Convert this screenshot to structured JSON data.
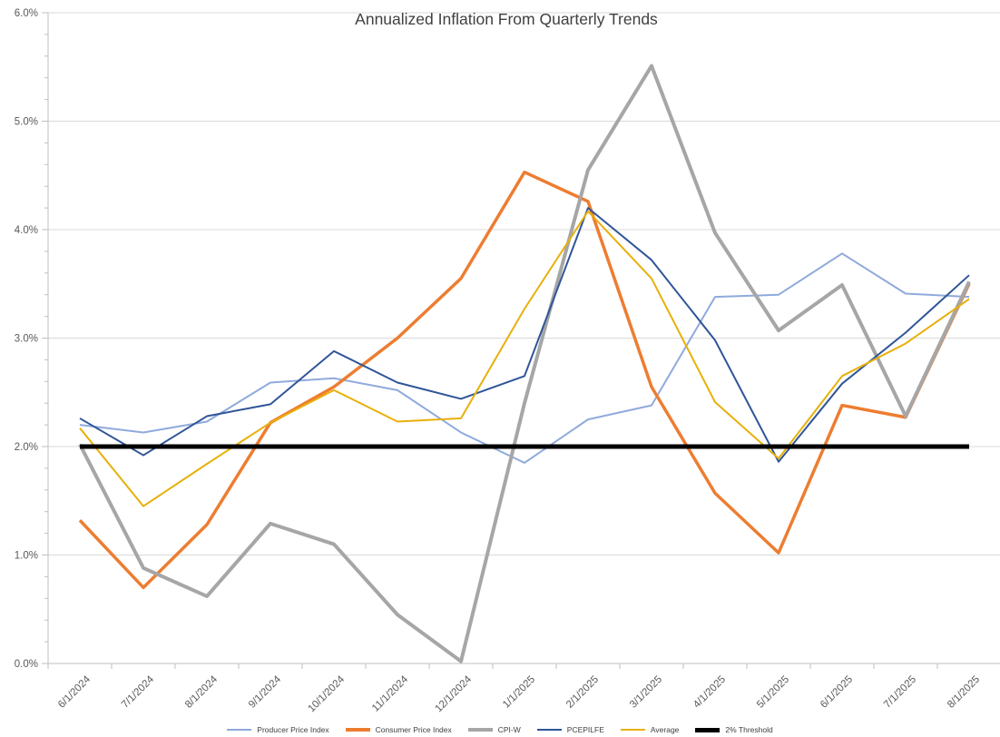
{
  "chart_data": {
    "type": "line",
    "title": "Annualized Inflation From Quarterly Trends",
    "x": [
      "6/1/2024",
      "7/1/2024",
      "8/1/2024",
      "9/1/2024",
      "10/1/2024",
      "11/1/2024",
      "12/1/2024",
      "1/1/2025",
      "2/1/2025",
      "3/1/2025",
      "4/1/2025",
      "5/1/2025",
      "6/1/2025",
      "7/1/2025",
      "8/1/2025"
    ],
    "series": [
      {
        "name": "Producer Price Index",
        "color": "#8FAADC",
        "stroke_width": 2,
        "values": [
          2.2,
          2.13,
          2.23,
          2.59,
          2.63,
          2.52,
          2.13,
          1.85,
          2.25,
          2.38,
          3.38,
          3.4,
          3.78,
          3.41,
          3.38
        ]
      },
      {
        "name": "Consumer Price Index",
        "color": "#ED7D31",
        "stroke_width": 3.5,
        "values": [
          1.32,
          0.7,
          1.28,
          2.22,
          2.55,
          3.0,
          3.55,
          4.53,
          4.26,
          2.55,
          1.57,
          1.02,
          2.38,
          2.27,
          3.5
        ]
      },
      {
        "name": "CPI-W",
        "color": "#A6A6A6",
        "stroke_width": 4,
        "values": [
          2.02,
          0.88,
          0.62,
          1.29,
          1.1,
          0.45,
          0.02,
          2.4,
          4.55,
          5.51,
          3.97,
          3.07,
          3.49,
          2.28,
          3.52
        ]
      },
      {
        "name": "PCEPILFE",
        "color": "#2F5597",
        "stroke_width": 2,
        "values": [
          2.26,
          1.92,
          2.28,
          2.39,
          2.88,
          2.59,
          2.44,
          2.65,
          4.2,
          3.72,
          2.98,
          1.86,
          2.58,
          3.05,
          3.58
        ]
      },
      {
        "name": "Average",
        "color": "#E8B00A",
        "stroke_width": 2,
        "values": [
          2.17,
          1.45,
          1.84,
          2.22,
          2.52,
          2.23,
          2.26,
          3.27,
          4.17,
          3.55,
          2.41,
          1.89,
          2.65,
          2.95,
          3.36
        ]
      },
      {
        "name": "2% Threshold",
        "color": "#000000",
        "stroke_width": 5,
        "values": [
          2.0,
          2.0,
          2.0,
          2.0,
          2.0,
          2.0,
          2.0,
          2.0,
          2.0,
          2.0,
          2.0,
          2.0,
          2.0,
          2.0,
          2.0
        ]
      }
    ],
    "y_tick_labels": [
      "0.0%",
      "1.0%",
      "2.0%",
      "3.0%",
      "4.0%",
      "5.0%",
      "6.0%"
    ],
    "ylim": [
      0,
      6
    ],
    "y_major_step": 1.0,
    "y_minor_step": 0.2,
    "xlabel": "",
    "ylabel": "",
    "grid": "horizontal-major",
    "legend_position": "bottom"
  },
  "style_colors": {
    "gridline": "#D9D9D9",
    "axis": "#BFBFBF",
    "tick": "#BFBFBF",
    "axis_label": "#595959",
    "title": "#404040",
    "background": "#FFFFFF"
  }
}
